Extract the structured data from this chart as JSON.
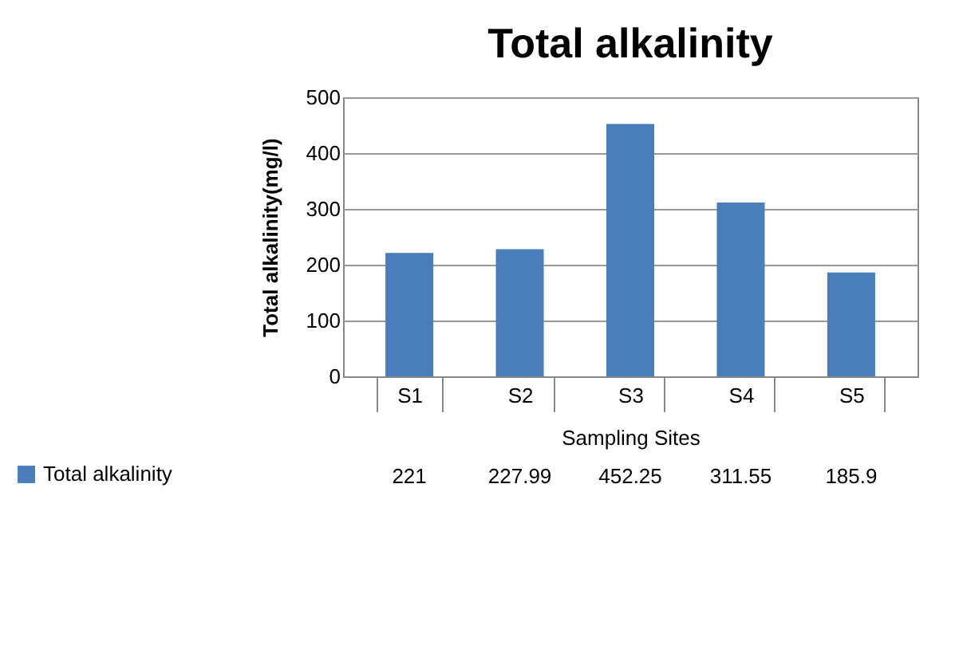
{
  "chart_data": {
    "type": "bar",
    "title": "Total alkalinity",
    "xlabel": "Sampling  Sites",
    "ylabel": "Total alkalinity(mg/l)",
    "categories": [
      "S1",
      "S2",
      "S3",
      "S4",
      "S5"
    ],
    "series": [
      {
        "name": "Total alkalinity",
        "color": "#4a7ebb",
        "values": [
          221,
          227.99,
          452.25,
          311.55,
          185.9
        ]
      }
    ],
    "ylim": [
      0,
      500
    ],
    "yticks": [
      0,
      100,
      200,
      300,
      400,
      500
    ],
    "grid": "y",
    "legend": "bottom",
    "data_labels": true
  }
}
